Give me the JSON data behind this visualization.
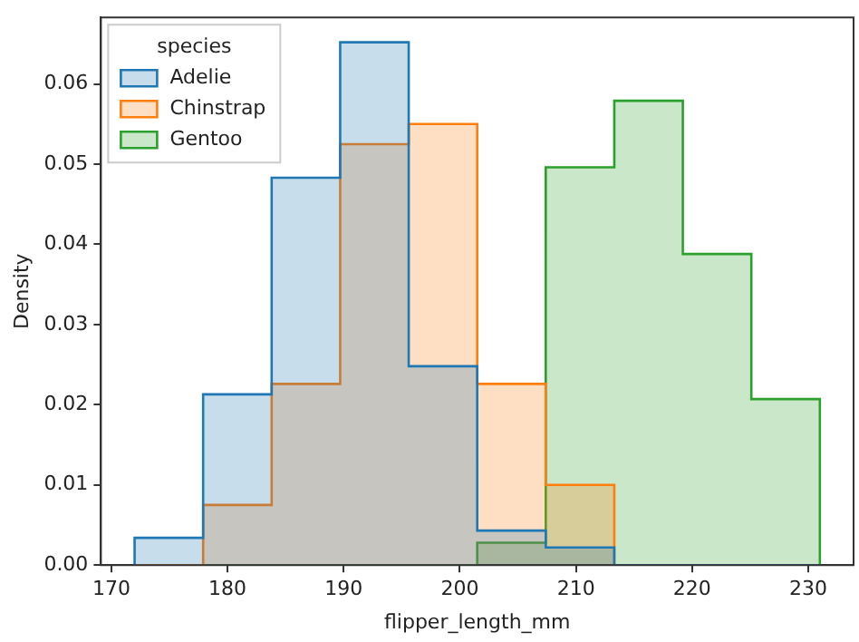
{
  "chart_data": {
    "type": "histogram",
    "xlabel": "flipper_length_mm",
    "ylabel": "Density",
    "legend_title": "species",
    "bins": [
      172,
      177.9,
      183.8,
      189.7,
      195.6,
      201.5,
      207.4,
      213.3,
      219.2,
      225.1,
      231
    ],
    "series": [
      {
        "name": "Adelie",
        "color": "#1f77b4",
        "values": [
          0.0034,
          0.0213,
          0.0483,
          0.0652,
          0.0248,
          0.0043,
          0.0022,
          0,
          0,
          0
        ]
      },
      {
        "name": "Chinstrap",
        "color": "#ff7f0e",
        "values": [
          0,
          0.0075,
          0.0226,
          0.0525,
          0.055,
          0.0226,
          0.01,
          0,
          0,
          0
        ]
      },
      {
        "name": "Gentoo",
        "color": "#2ca02c",
        "values": [
          0,
          0,
          0,
          0,
          0,
          0.0028,
          0.0496,
          0.0579,
          0.0388,
          0.0207
        ]
      }
    ],
    "xlim": [
      169.1,
      233.9
    ],
    "xticks": [
      170,
      180,
      190,
      200,
      210,
      220,
      230
    ],
    "ylim": [
      0,
      0.0683
    ],
    "yticks": [
      {
        "value": 0,
        "label": "0.00"
      },
      0.01,
      0.02,
      0.03,
      0.04,
      0.05,
      0.06
    ],
    "grid": false,
    "legend": "top left"
  }
}
